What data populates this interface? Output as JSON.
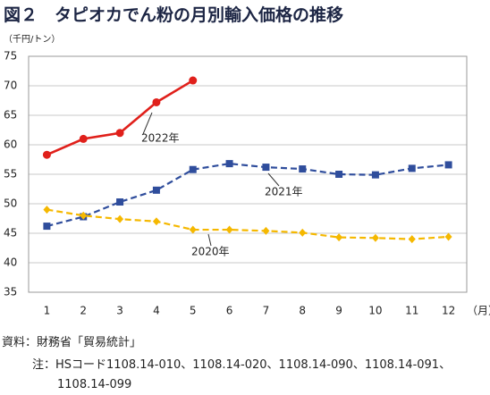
{
  "chart_data": {
    "type": "line",
    "title": "図２　タピオカでん粉の月別輸入価格の推移",
    "y_unit": "（千円/トン）",
    "x_unit": "（月）",
    "categories": [
      "1",
      "2",
      "3",
      "4",
      "5",
      "6",
      "7",
      "8",
      "9",
      "10",
      "11",
      "12"
    ],
    "series": [
      {
        "name": "2022年",
        "color": "#e0201b",
        "marker": "circle",
        "dashed": false,
        "values": [
          58.3,
          61.0,
          62.0,
          67.2,
          70.9,
          null,
          null,
          null,
          null,
          null,
          null,
          null
        ]
      },
      {
        "name": "2021年",
        "color": "#2f4d9c",
        "marker": "square",
        "dashed": true,
        "values": [
          46.2,
          47.8,
          50.3,
          52.3,
          55.8,
          56.8,
          56.2,
          55.9,
          55.0,
          54.9,
          56.0,
          56.6
        ]
      },
      {
        "name": "2020年",
        "color": "#f5b800",
        "marker": "diamond",
        "dashed": true,
        "values": [
          49.0,
          48.0,
          47.4,
          47.0,
          45.6,
          45.6,
          45.4,
          45.1,
          44.3,
          44.2,
          44.0,
          44.4
        ]
      }
    ],
    "ylim": [
      35,
      75
    ],
    "yticks": [
      35,
      40,
      45,
      50,
      55,
      60,
      65,
      70,
      75
    ],
    "grid": true,
    "source": "資料：財務省「貿易統計」",
    "note": "注：HSコード1108.14-010、1108.14-020、1108.14-090、1108.14-091、1108.14-099"
  }
}
